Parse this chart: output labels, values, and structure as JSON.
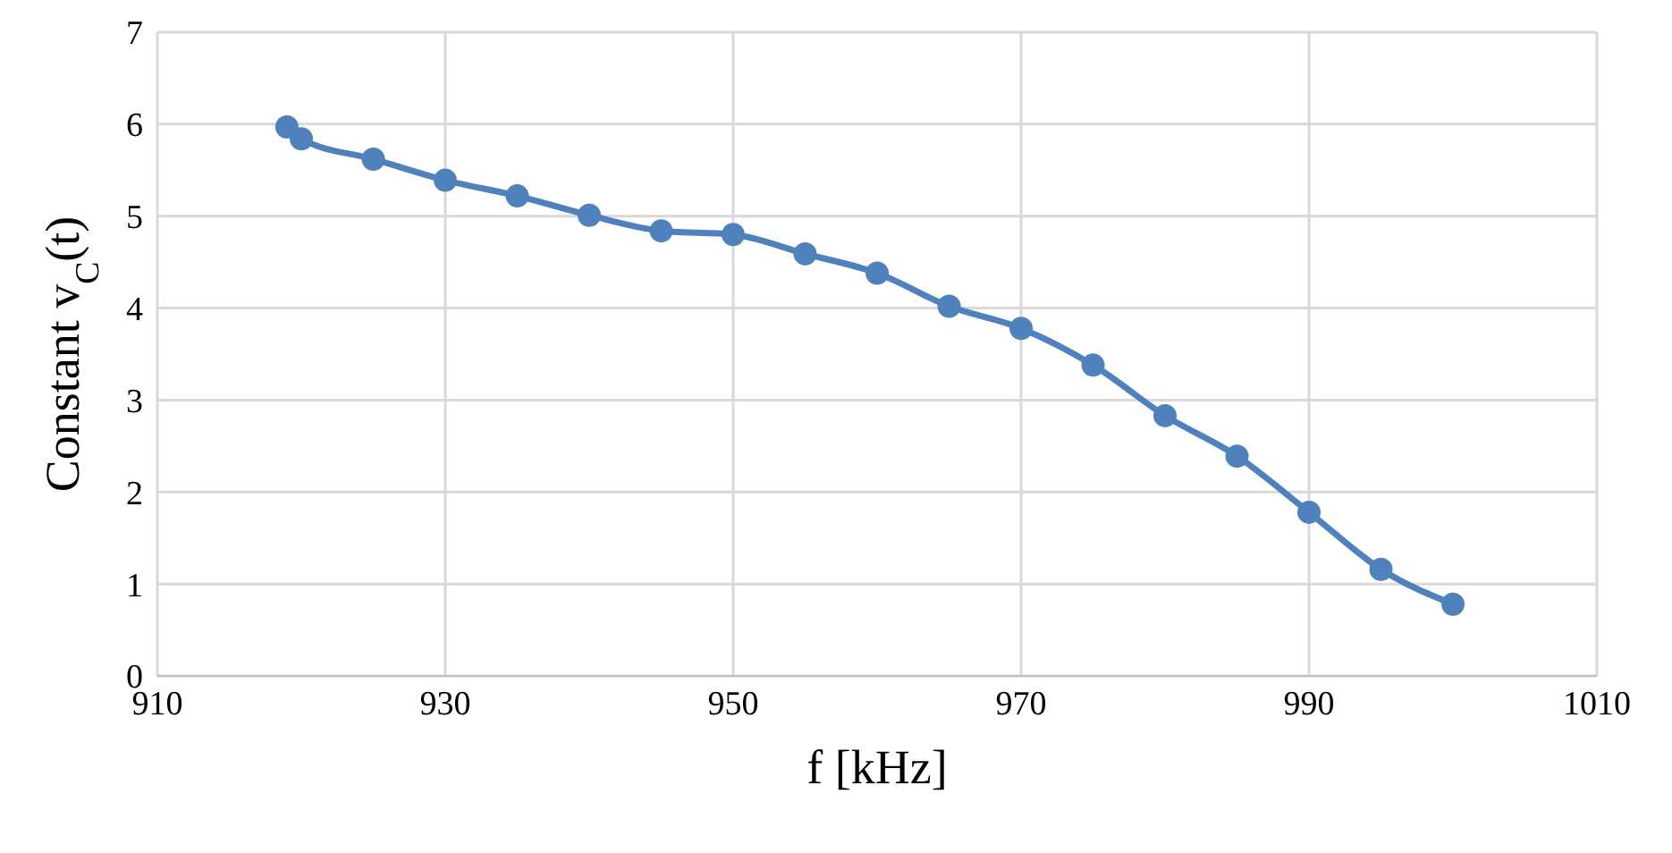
{
  "chart_data": {
    "type": "line",
    "xlabel": "f [kHz]",
    "ylabel": "Constant v$_{C}$(t)",
    "x": [
      919,
      920,
      925,
      930,
      935,
      940,
      945,
      950,
      955,
      960,
      965,
      970,
      975,
      980,
      985,
      990,
      995,
      1000
    ],
    "series": [
      {
        "color": "#4f81bd",
        "values": [
          5.97,
          5.84,
          5.62,
          5.39,
          5.22,
          5.01,
          4.84,
          4.8,
          4.59,
          4.38,
          4.02,
          3.78,
          3.38,
          2.83,
          2.39,
          1.78,
          1.16,
          0.78
        ]
      }
    ],
    "xlim": [
      910,
      1010
    ],
    "xticks": [
      910,
      930,
      950,
      970,
      990,
      1010
    ],
    "ylim": [
      0,
      7
    ],
    "yticks": [
      0,
      1,
      2,
      3,
      4,
      5,
      6,
      7
    ],
    "grid": true,
    "marker": "circle",
    "line_style": "solid",
    "legend": false
  }
}
